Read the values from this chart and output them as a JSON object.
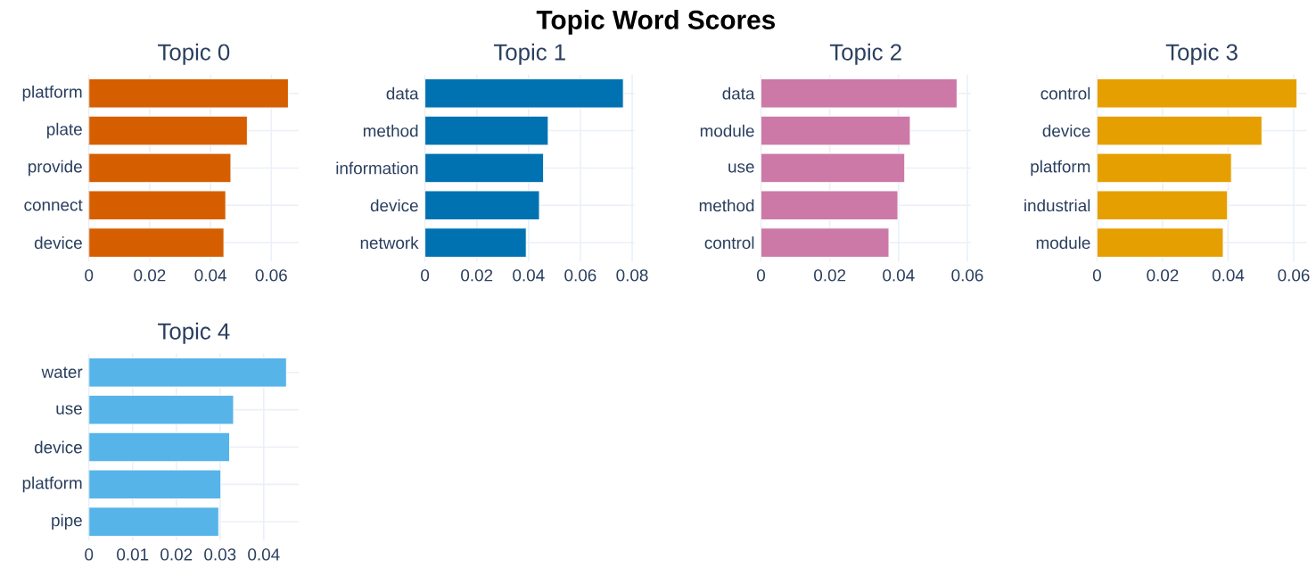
{
  "chart_data": [
    {
      "type": "bar",
      "orientation": "horizontal",
      "title": "Topic 0",
      "annotations": [
        "Topic Word Scores"
      ],
      "categories": [
        "platform",
        "plate",
        "provide",
        "connect",
        "device"
      ],
      "values": [
        0.0656,
        0.0521,
        0.0467,
        0.045,
        0.0444
      ],
      "color": "#d55e00",
      "xlim": [
        0,
        0.069
      ],
      "xticks": [
        0,
        0.02,
        0.04,
        0.06
      ],
      "grid": true
    },
    {
      "type": "bar",
      "orientation": "horizontal",
      "title": "Topic 1",
      "categories": [
        "data",
        "method",
        "information",
        "device",
        "network"
      ],
      "values": [
        0.0766,
        0.0476,
        0.0458,
        0.0442,
        0.0391
      ],
      "color": "#0072b2",
      "xlim": [
        0,
        0.081
      ],
      "xticks": [
        0,
        0.02,
        0.04,
        0.06,
        0.08
      ],
      "grid": true
    },
    {
      "type": "bar",
      "orientation": "horizontal",
      "title": "Topic 2",
      "categories": [
        "data",
        "module",
        "use",
        "method",
        "control"
      ],
      "values": [
        0.057,
        0.0434,
        0.0418,
        0.0398,
        0.0372
      ],
      "color": "#cc79a7",
      "xlim": [
        0,
        0.061
      ],
      "xticks": [
        0,
        0.02,
        0.04,
        0.06
      ],
      "grid": true
    },
    {
      "type": "bar",
      "orientation": "horizontal",
      "title": "Topic 3",
      "categories": [
        "control",
        "device",
        "platform",
        "industrial",
        "module"
      ],
      "values": [
        0.061,
        0.0503,
        0.041,
        0.0398,
        0.0385
      ],
      "color": "#e69f00",
      "xlim": [
        0,
        0.064
      ],
      "xticks": [
        0,
        0.02,
        0.04,
        0.06
      ],
      "grid": true
    },
    {
      "type": "bar",
      "orientation": "horizontal",
      "title": "Topic 4",
      "categories": [
        "water",
        "use",
        "device",
        "platform",
        "pipe"
      ],
      "values": [
        0.0452,
        0.0331,
        0.0322,
        0.0302,
        0.0297
      ],
      "color": "#56b4e9",
      "xlim": [
        0,
        0.048
      ],
      "xticks": [
        0,
        0.01,
        0.02,
        0.03,
        0.04
      ],
      "grid": true
    }
  ]
}
